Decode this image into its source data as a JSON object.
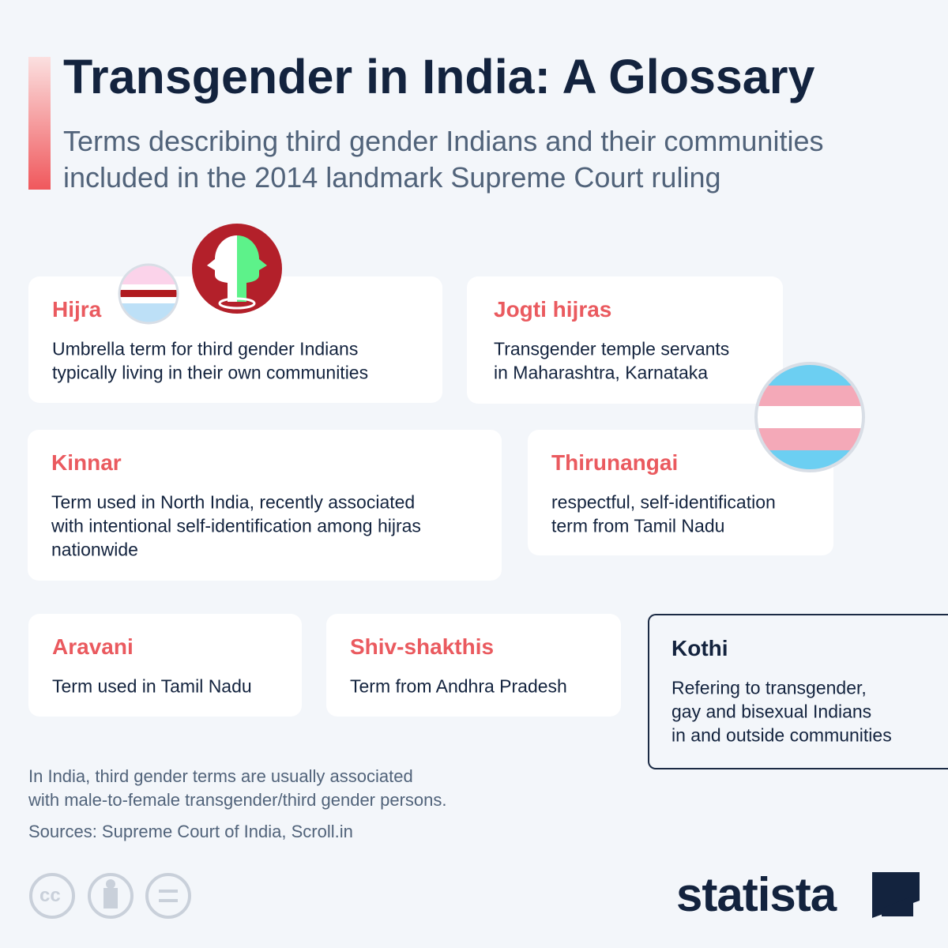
{
  "header": {
    "title": "Transgender in India: A Glossary",
    "subtitle_lines": [
      "Terms describing third gender Indians and their communities",
      "included in the 2014 landmark Supreme Court ruling"
    ]
  },
  "terms": [
    {
      "term": "Hijra",
      "lines": [
        "Umbrella term for third gender Indians",
        "typically living in their own communities"
      ]
    },
    {
      "term": "Jogti hijras",
      "lines": [
        "Transgender temple servants",
        "in Maharashtra, Karnataka"
      ]
    },
    {
      "term": "Kinnar",
      "lines": [
        "Term used in North India, recently associated",
        "with intentional self-identification among hijras",
        "nationwide"
      ]
    },
    {
      "term": "Thirunangai",
      "lines": [
        "respectful, self-identification",
        "term from Tamil Nadu"
      ]
    },
    {
      "term": "Aravani",
      "lines": [
        "Term used in Tamil Nadu"
      ]
    },
    {
      "term": "Shiv-shakthis",
      "lines": [
        "Term from Andhra Pradesh"
      ]
    },
    {
      "term": "Kothi",
      "lines": [
        "Refering to transgender,",
        "gay and bisexual Indians",
        "in and outside communities"
      ]
    }
  ],
  "footer": {
    "note_lines": [
      "In India, third gender terms are usually associated",
      "with male-to-female transgender/third gender persons."
    ],
    "sources": "Sources: Supreme Court of India, Scroll.in",
    "license_label": "cc",
    "brand": "statista"
  }
}
